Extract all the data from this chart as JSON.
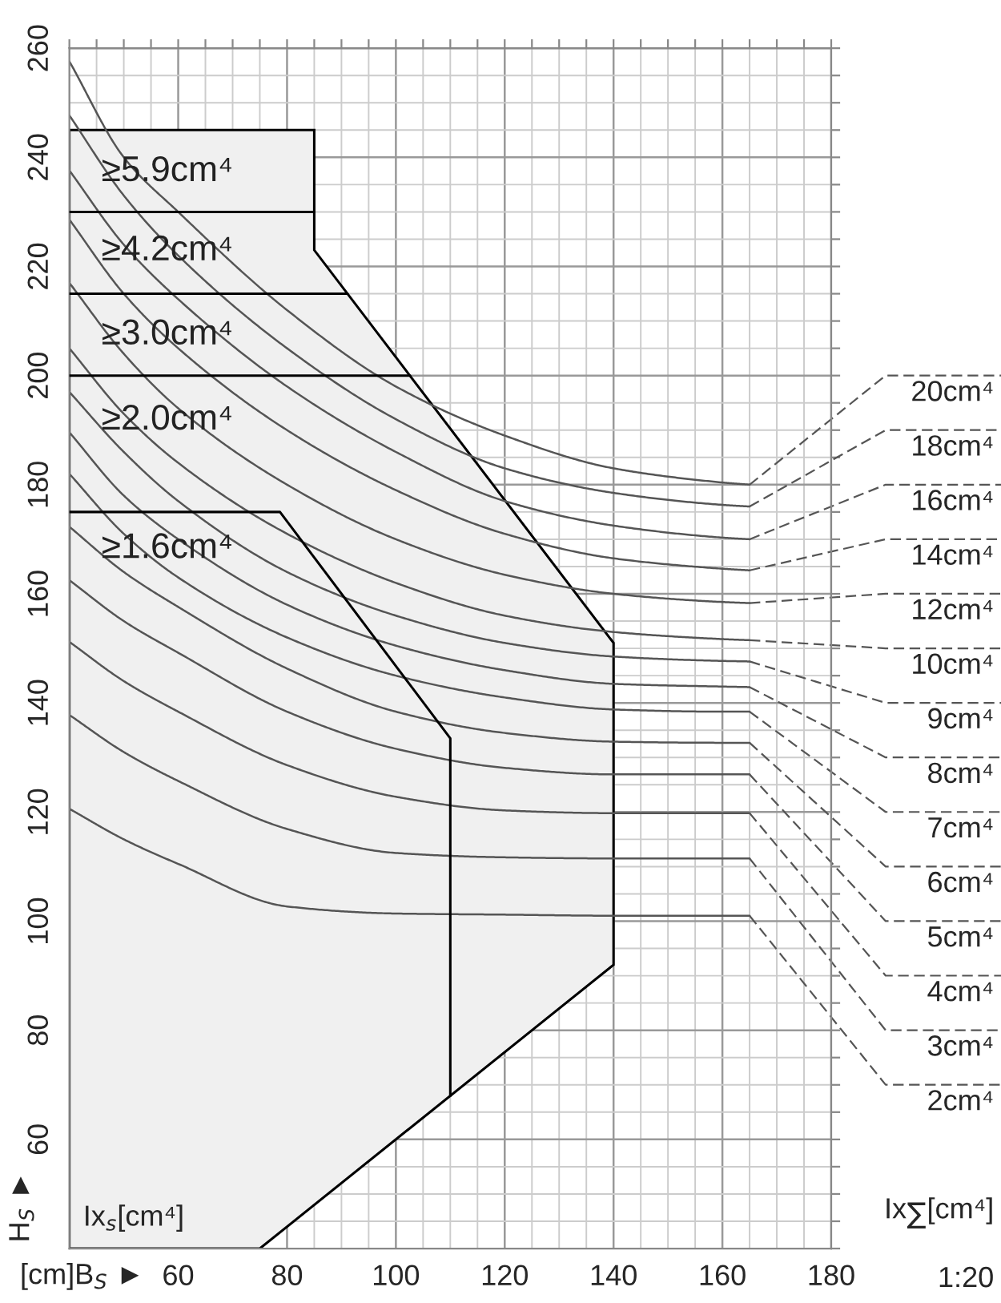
{
  "chart_data": {
    "type": "line",
    "xlabel": "[cm]B$_{S}$ ►",
    "ylabel": "H$_{S}$ ►",
    "xlim": [
      40,
      180
    ],
    "ylim": [
      40,
      260
    ],
    "xticks": [
      {
        "value": 40,
        "label": null
      },
      {
        "value": 45,
        "label": null
      },
      {
        "value": 50,
        "label": null
      },
      {
        "value": 55,
        "label": null
      },
      60,
      {
        "value": 65,
        "label": null
      },
      {
        "value": 70,
        "label": null
      },
      {
        "value": 75,
        "label": null
      },
      80,
      {
        "value": 85,
        "label": null
      },
      {
        "value": 90,
        "label": null
      },
      {
        "value": 95,
        "label": null
      },
      100,
      {
        "value": 105,
        "label": null
      },
      {
        "value": 110,
        "label": null
      },
      {
        "value": 115,
        "label": null
      },
      120,
      {
        "value": 125,
        "label": null
      },
      {
        "value": 130,
        "label": null
      },
      {
        "value": 135,
        "label": null
      },
      140,
      {
        "value": 145,
        "label": null
      },
      {
        "value": 150,
        "label": null
      },
      {
        "value": 155,
        "label": null
      },
      160,
      {
        "value": 165,
        "label": null
      },
      {
        "value": 170,
        "label": null
      },
      {
        "value": 175,
        "label": null
      },
      180
    ],
    "yticks": [
      {
        "value": 40,
        "label": null
      },
      {
        "value": 45,
        "label": null
      },
      {
        "value": 50,
        "label": null
      },
      {
        "value": 55,
        "label": null
      },
      60,
      {
        "value": 65,
        "label": null
      },
      {
        "value": 70,
        "label": null
      },
      {
        "value": 75,
        "label": null
      },
      80,
      {
        "value": 85,
        "label": null
      },
      {
        "value": 90,
        "label": null
      },
      {
        "value": 95,
        "label": null
      },
      100,
      {
        "value": 105,
        "label": null
      },
      {
        "value": 110,
        "label": null
      },
      {
        "value": 115,
        "label": null
      },
      120,
      {
        "value": 125,
        "label": null
      },
      {
        "value": 130,
        "label": null
      },
      {
        "value": 135,
        "label": null
      },
      140,
      {
        "value": 145,
        "label": null
      },
      {
        "value": 150,
        "label": null
      },
      {
        "value": 155,
        "label": null
      },
      160,
      {
        "value": 165,
        "label": null
      },
      {
        "value": 170,
        "label": null
      },
      {
        "value": 175,
        "label": null
      },
      180,
      {
        "value": 185,
        "label": null
      },
      {
        "value": 190,
        "label": null
      },
      {
        "value": 195,
        "label": null
      },
      200,
      {
        "value": 205,
        "label": null
      },
      {
        "value": 210,
        "label": null
      },
      {
        "value": 215,
        "label": null
      },
      220,
      {
        "value": 225,
        "label": null
      },
      {
        "value": 230,
        "label": null
      },
      {
        "value": 235,
        "label": null
      },
      240,
      {
        "value": 245,
        "label": null
      },
      {
        "value": 250,
        "label": null
      },
      {
        "value": 255,
        "label": null
      },
      260
    ],
    "grid": true,
    "series": [
      {
        "type": "area",
        "color": "#f0f0f0",
        "x": [
          40,
          85,
          85,
          140,
          140,
          75,
          40
        ],
        "values": [
          245,
          245,
          223,
          151,
          92,
          40,
          40
        ]
      },
      {
        "color": "#000000",
        "x": [
          40,
          85
        ],
        "values": [
          230,
          230
        ]
      },
      {
        "color": "#000000",
        "x": [
          40,
          91.1
        ],
        "values": [
          215,
          215
        ]
      },
      {
        "color": "#000000",
        "x": [
          40,
          102.6
        ],
        "values": [
          200,
          200
        ]
      },
      {
        "color": "#000000",
        "x": [
          40,
          78.7,
          110,
          110
        ],
        "values": [
          175,
          175,
          133.5,
          68
        ]
      },
      {
        "name": "20cm⁴",
        "color": "#555555",
        "x": [
          40,
          50,
          60,
          80,
          100,
          120,
          140,
          160,
          165
        ],
        "values": [
          257.6,
          240,
          230,
          212,
          198,
          189,
          183,
          180.4,
          180
        ]
      },
      {
        "name": "18cm⁴",
        "color": "#555555",
        "x": [
          40,
          50,
          60,
          80,
          100,
          120,
          140,
          160,
          165
        ],
        "values": [
          247.7,
          233,
          222,
          205,
          192,
          183,
          178.5,
          176.3,
          176
        ]
      },
      {
        "name": "16cm⁴",
        "color": "#555555",
        "x": [
          40,
          50,
          60,
          80,
          100,
          120,
          140,
          160,
          165
        ],
        "values": [
          237.6,
          224,
          214,
          198,
          186,
          177,
          172.5,
          170.3,
          170
        ]
      },
      {
        "name": "14cm⁴",
        "color": "#555555",
        "x": [
          40,
          50,
          60,
          80,
          100,
          120,
          140,
          160,
          165
        ],
        "values": [
          228.6,
          215,
          205,
          190,
          179,
          171,
          166.5,
          164.6,
          164.3
        ]
      },
      {
        "name": "12cm⁴",
        "color": "#555555",
        "x": [
          40,
          50,
          60,
          80,
          100,
          120,
          140,
          160,
          165
        ],
        "values": [
          217,
          204,
          194,
          180,
          170,
          163.5,
          160,
          158.5,
          158.3
        ]
      },
      {
        "name": "10cm⁴",
        "color": "#555555",
        "x": [
          40,
          50,
          60,
          80,
          100,
          120,
          140,
          160,
          165
        ],
        "values": [
          205,
          193,
          184,
          171,
          162,
          156,
          153,
          151.7,
          151.5
        ]
      },
      {
        "name": "9cm⁴",
        "color": "#555555",
        "x": [
          40,
          50,
          60,
          80,
          100,
          120,
          140,
          160,
          165
        ],
        "values": [
          197,
          186,
          177,
          164,
          156,
          151,
          148.5,
          147.7,
          147.6
        ]
      },
      {
        "name": "8cm⁴",
        "color": "#555555",
        "x": [
          40,
          50,
          60,
          80,
          100,
          120,
          140,
          160,
          165
        ],
        "values": [
          189.6,
          178,
          170,
          158,
          150.5,
          146,
          143.5,
          143,
          142.9
        ]
      },
      {
        "name": "7cm⁴",
        "color": "#555555",
        "x": [
          40,
          50,
          60,
          80,
          100,
          120,
          140,
          160,
          165
        ],
        "values": [
          182,
          171,
          163,
          152,
          145,
          141,
          138.8,
          138.4,
          138.4
        ]
      },
      {
        "name": "6cm⁴",
        "color": "#555555",
        "x": [
          40,
          50,
          60,
          80,
          100,
          120,
          140,
          160,
          165
        ],
        "values": [
          172.3,
          164,
          157.6,
          146.3,
          138.4,
          134.5,
          132.9,
          132.7,
          132.7
        ]
      },
      {
        "name": "5cm⁴",
        "color": "#555555",
        "x": [
          40,
          50,
          60,
          80,
          100,
          120,
          140,
          160,
          165
        ],
        "values": [
          162.5,
          155,
          149.2,
          138.4,
          131.6,
          128.1,
          126.9,
          126.9,
          126.9
        ]
      },
      {
        "name": "4cm⁴",
        "color": "#555555",
        "x": [
          40,
          50,
          60,
          80,
          100,
          120,
          140,
          160,
          165
        ],
        "values": [
          151.2,
          144,
          138.4,
          128.6,
          122.8,
          120.3,
          119.8,
          119.8,
          119.8
        ]
      },
      {
        "name": "3cm⁴",
        "color": "#555555",
        "x": [
          40,
          50,
          60,
          80,
          100,
          120,
          140,
          160,
          165
        ],
        "values": [
          137.8,
          131,
          125.7,
          116.9,
          112.5,
          111.7,
          111.5,
          111.5,
          111.5
        ]
      },
      {
        "name": "2cm⁴",
        "color": "#555555",
        "x": [
          40,
          50,
          60,
          80,
          100,
          120,
          140,
          160,
          165
        ],
        "values": [
          120.6,
          115,
          110.5,
          102.7,
          101.4,
          101.2,
          101,
          101,
          101
        ]
      }
    ],
    "annotations": [
      "≥5.9cm⁴",
      "≥4.2cm⁴",
      "≥3.0cm⁴",
      "≥2.0cm⁴",
      "≥1.6cm⁴",
      "Ix$_{s}$[cm⁴]",
      "Ix$_{∑}$[cm⁴]",
      "1:20"
    ]
  }
}
